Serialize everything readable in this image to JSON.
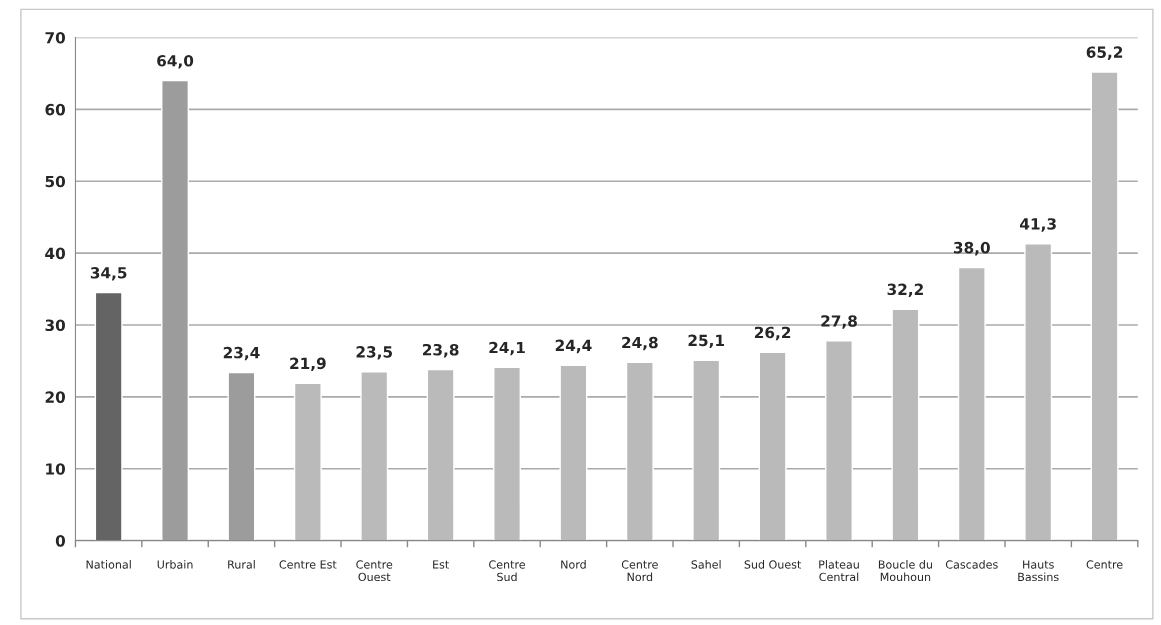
{
  "chart_data": {
    "type": "bar",
    "categories": [
      "National",
      "Urbain",
      "Rural",
      "Centre Est",
      "Centre\nOuest",
      "Est",
      "Centre\nSud",
      "Nord",
      "Centre\nNord",
      "Sahel",
      "Sud Ouest",
      "Plateau\nCentral",
      "Boucle du\nMouhoun",
      "Cascades",
      "Hauts\nBassins",
      "Centre"
    ],
    "values": [
      34.5,
      64.0,
      23.4,
      21.9,
      23.5,
      23.8,
      24.1,
      24.4,
      24.8,
      25.1,
      26.2,
      27.8,
      32.2,
      38.0,
      41.3,
      65.2
    ],
    "value_labels": [
      "34,5",
      "64,0",
      "23,4",
      "21,9",
      "23,5",
      "23,8",
      "24,1",
      "24,4",
      "24,8",
      "25,1",
      "26,2",
      "27,8",
      "32,2",
      "38,0",
      "41,3",
      "65,2"
    ],
    "colors": [
      "#646464",
      "#9c9c9c",
      "#9c9c9c",
      "#bababa",
      "#bababa",
      "#bababa",
      "#bababa",
      "#bababa",
      "#bababa",
      "#bababa",
      "#bababa",
      "#bababa",
      "#bababa",
      "#bababa",
      "#bababa",
      "#bababa"
    ],
    "ylim": [
      0,
      70
    ],
    "yticks": [
      0,
      10,
      20,
      30,
      40,
      50,
      60,
      70
    ],
    "grid": "y"
  }
}
